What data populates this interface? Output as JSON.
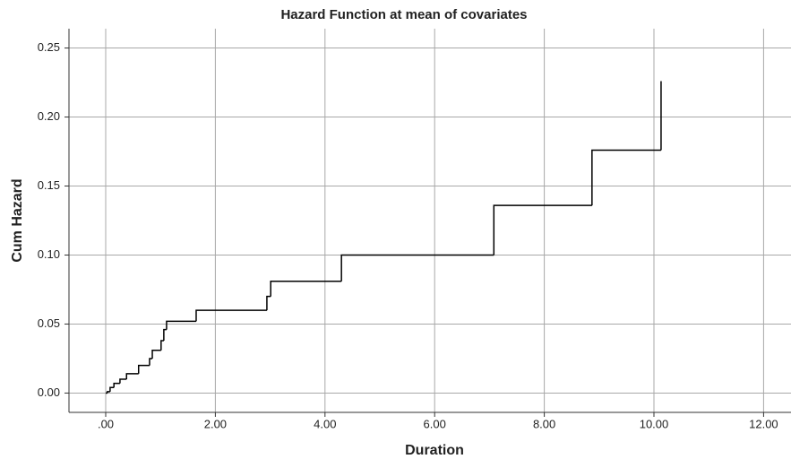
{
  "chart_data": {
    "type": "step",
    "title": "Hazard Function at mean of covariates",
    "x_label": "Duration",
    "y_label": "Cum Hazard",
    "x": [
      0,
      0.03,
      0.08,
      0.15,
      0.26,
      0.38,
      0.6,
      0.8,
      0.85,
      1.01,
      1.06,
      1.11,
      1.65,
      2.94,
      3.01,
      4.3,
      7.08,
      8.87,
      10.13
    ],
    "series": [
      {
        "name": "Cum Hazard",
        "color": "#000000",
        "values": [
          0,
          0.001,
          0.004,
          0.007,
          0.01,
          0.014,
          0.02,
          0.025,
          0.031,
          0.038,
          0.046,
          0.052,
          0.06,
          0.07,
          0.081,
          0.1,
          0.136,
          0.176,
          0.226
        ]
      }
    ],
    "xlim": [
      -0.67,
      12.5
    ],
    "xticks": [
      {
        "value": 0,
        "label": ".00"
      },
      {
        "value": 2,
        "label": "2.00"
      },
      {
        "value": 4,
        "label": "4.00"
      },
      {
        "value": 6,
        "label": "6.00"
      },
      {
        "value": 8,
        "label": "8.00"
      },
      {
        "value": 10,
        "label": "10.00"
      },
      {
        "value": 12,
        "label": "12.00"
      }
    ],
    "ylim": [
      -0.014,
      0.264
    ],
    "yticks": [
      {
        "value": 0,
        "label": "0.00"
      },
      {
        "value": 0.05,
        "label": "0.05"
      },
      {
        "value": 0.1,
        "label": "0.10"
      },
      {
        "value": 0.15,
        "label": "0.15"
      },
      {
        "value": 0.2,
        "label": "0.20"
      },
      {
        "value": 0.25,
        "label": "0.25"
      }
    ],
    "grid": true
  }
}
